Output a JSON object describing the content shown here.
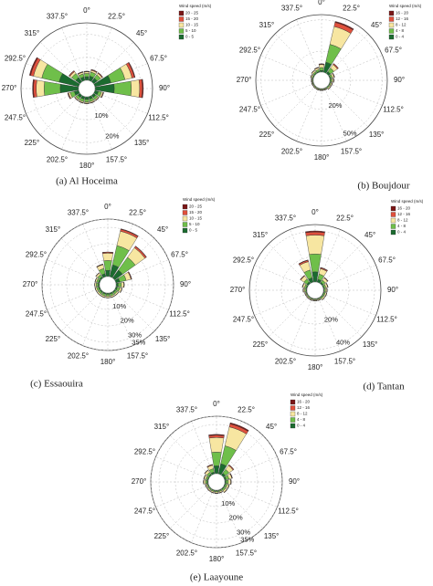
{
  "chart_data": [
    {
      "type": "wind-rose",
      "caption": "(a) Al Hoceima",
      "legend_title": "Wind speed (m/s)",
      "categories": [
        "0°",
        "22.5°",
        "45°",
        "67.5°",
        "90°",
        "112.5°",
        "135°",
        "157.5°",
        "180°",
        "202.5°",
        "225°",
        "247.5°",
        "270°",
        "292.5°",
        "315°",
        "337.5°"
      ],
      "rlim": [
        0,
        25
      ],
      "rticks": [
        {
          "value": 10,
          "label": "10%"
        },
        {
          "value": 20,
          "label": "20%"
        }
      ],
      "series": [
        {
          "name": "0 - 5",
          "color": "#1b6b2f",
          "values": [
            1.6,
            2,
            2,
            7.2,
            8.4,
            1.6,
            1.2,
            1.2,
            1.2,
            1.2,
            1.2,
            2,
            8,
            8.8,
            2.4,
            1.6
          ]
        },
        {
          "name": "5 - 10",
          "color": "#6fbf4a",
          "values": [
            1.4,
            1.8,
            1.8,
            6.3,
            7.4,
            1.4,
            1.1,
            1.1,
            1.1,
            1.1,
            1.1,
            1.8,
            7,
            7.7,
            2.1,
            1.4
          ]
        },
        {
          "name": "10 - 15",
          "color": "#f7e6a1",
          "values": [
            0.7,
            0.8,
            0.8,
            3.1,
            3.6,
            0.7,
            0.5,
            0.5,
            0.5,
            0.5,
            0.5,
            0.8,
            3.4,
            3.7,
            1,
            0.7
          ]
        },
        {
          "name": "15 - 20",
          "color": "#e0503c",
          "values": [
            0.2,
            0.3,
            0.3,
            1.1,
            1.2,
            0.2,
            0.2,
            0.2,
            0.2,
            0.2,
            0.2,
            0.3,
            1.2,
            1.3,
            0.4,
            0.2
          ]
        },
        {
          "name": "20 - 25",
          "color": "#7a1616",
          "values": [
            0.1,
            0.1,
            0.1,
            0.3,
            0.4,
            0.1,
            0,
            0,
            0,
            0,
            0,
            0.1,
            0.4,
            0.5,
            0.1,
            0.1
          ]
        }
      ]
    },
    {
      "type": "wind-rose",
      "caption": "(b) Boujdour",
      "legend_title": "Wind speed (m/s)",
      "categories": [
        "0°",
        "22.5°",
        "45°",
        "67.5°",
        "90°",
        "112.5°",
        "135°",
        "157.5°",
        "180°",
        "202.5°",
        "225°",
        "247.5°",
        "270°",
        "292.5°",
        "315°",
        "337.5°"
      ],
      "rlim": [
        0,
        55
      ],
      "rticks": [
        {
          "value": 20,
          "label": "20%"
        },
        {
          "value": 50,
          "label": "50%"
        }
      ],
      "series": [
        {
          "name": "0 - 4",
          "color": "#1b6b2f",
          "values": [
            1.6,
            10,
            2.4,
            1,
            0.8,
            0.6,
            0.6,
            0.4,
            0.4,
            0.4,
            0.4,
            0.4,
            0.4,
            0.6,
            0.8,
            1
          ]
        },
        {
          "name": "4 - 8",
          "color": "#6fbf4a",
          "values": [
            2.8,
            17.5,
            4.2,
            1.8,
            1.4,
            1,
            1,
            0.7,
            0.7,
            0.7,
            0.7,
            0.7,
            0.7,
            1,
            1.4,
            1.8
          ]
        },
        {
          "name": "8 - 12",
          "color": "#f7e6a1",
          "values": [
            2.8,
            17.5,
            4.2,
            1.7,
            1.4,
            1.1,
            1.1,
            0.7,
            0.7,
            0.7,
            0.7,
            0.7,
            0.7,
            1.1,
            1.4,
            1.7
          ]
        },
        {
          "name": "12 - 16",
          "color": "#e0503c",
          "values": [
            0.6,
            4,
            1,
            0.4,
            0.3,
            0.2,
            0.2,
            0.2,
            0.2,
            0.2,
            0.2,
            0.2,
            0.2,
            0.2,
            0.3,
            0.4
          ]
        },
        {
          "name": "16 - 20",
          "color": "#7a1616",
          "values": [
            0.2,
            1,
            0.2,
            0.1,
            0.1,
            0.1,
            0.1,
            0,
            0,
            0,
            0,
            0,
            0,
            0.1,
            0.1,
            0.1
          ]
        }
      ]
    },
    {
      "type": "wind-rose",
      "caption": "(c) Essaouira",
      "legend_title": "Wind speed (m/s)",
      "categories": [
        "0°",
        "22.5°",
        "45°",
        "67.5°",
        "90°",
        "112.5°",
        "135°",
        "157.5°",
        "180°",
        "202.5°",
        "225°",
        "247.5°",
        "270°",
        "292.5°",
        "315°",
        "337.5°"
      ],
      "rlim": [
        0,
        35
      ],
      "rticks": [
        {
          "value": 10,
          "label": "10%"
        },
        {
          "value": 20,
          "label": "20%"
        },
        {
          "value": 30,
          "label": "30%"
        },
        {
          "value": 35,
          "label": "35%"
        }
      ],
      "series": [
        {
          "name": "0 - 5",
          "color": "#1b6b2f",
          "values": [
            3.8,
            7.5,
            6,
            2.5,
            1.3,
            1,
            0.8,
            0.8,
            0.8,
            0.8,
            0.8,
            0.8,
            0.8,
            0.8,
            1,
            2
          ]
        },
        {
          "name": "5 - 10",
          "color": "#6fbf4a",
          "values": [
            6,
            12,
            9.6,
            4,
            2,
            1.6,
            1.2,
            1.2,
            1.2,
            1.2,
            1.2,
            1.2,
            1.2,
            1.2,
            1.6,
            3.2
          ]
        },
        {
          "name": "10 - 15",
          "color": "#f7e6a1",
          "values": [
            4.5,
            9,
            7.2,
            3,
            1.5,
            1.2,
            0.9,
            0.9,
            0.9,
            0.9,
            0.9,
            0.9,
            0.9,
            0.9,
            1.2,
            2.4
          ]
        },
        {
          "name": "15 - 20",
          "color": "#e0503c",
          "values": [
            0.6,
            1.2,
            1,
            0.4,
            0.2,
            0.2,
            0.1,
            0.1,
            0.1,
            0.1,
            0.1,
            0.1,
            0.1,
            0.1,
            0.2,
            0.3
          ]
        },
        {
          "name": "20 - 25",
          "color": "#7a1616",
          "values": [
            0.1,
            0.3,
            0.2,
            0.1,
            0,
            0,
            0,
            0,
            0,
            0,
            0,
            0,
            0,
            0,
            0,
            0.1
          ]
        }
      ]
    },
    {
      "type": "wind-rose",
      "caption": "(d) Tantan",
      "legend_title": "Wind speed (m/s)",
      "categories": [
        "0°",
        "22.5°",
        "45°",
        "67.5°",
        "90°",
        "112.5°",
        "135°",
        "157.5°",
        "180°",
        "202.5°",
        "225°",
        "247.5°",
        "270°",
        "292.5°",
        "315°",
        "337.5°"
      ],
      "rlim": [
        0,
        45
      ],
      "rticks": [
        {
          "value": 20,
          "label": "20%"
        },
        {
          "value": 40,
          "label": "40%"
        }
      ],
      "series": [
        {
          "name": "0 - 4",
          "color": "#1b6b2f",
          "values": [
            8,
            2.4,
            1.2,
            0.8,
            0.6,
            0.6,
            0.6,
            0.4,
            0.4,
            0.4,
            0.4,
            0.4,
            0.6,
            0.8,
            1.6,
            3.6
          ]
        },
        {
          "name": "4 - 8",
          "color": "#6fbf4a",
          "values": [
            14,
            4.2,
            2.1,
            1.4,
            1.1,
            1.1,
            1.1,
            0.7,
            0.7,
            0.7,
            0.7,
            0.7,
            1.1,
            1.4,
            2.8,
            6.3
          ]
        },
        {
          "name": "8 - 12",
          "color": "#f7e6a1",
          "values": [
            14.8,
            4.4,
            2.2,
            1.5,
            1.1,
            1.1,
            1.1,
            0.7,
            0.7,
            0.7,
            0.7,
            0.7,
            1.1,
            1.5,
            3,
            6.7
          ]
        },
        {
          "name": "12 - 16",
          "color": "#e0503c",
          "values": [
            2.4,
            0.7,
            0.4,
            0.2,
            0.2,
            0.2,
            0.2,
            0.2,
            0.2,
            0.2,
            0.2,
            0.2,
            0.2,
            0.2,
            0.5,
            1.1
          ]
        },
        {
          "name": "16 - 20",
          "color": "#7a1616",
          "values": [
            0.8,
            0.3,
            0.1,
            0.1,
            0,
            0,
            0,
            0,
            0,
            0,
            0,
            0,
            0,
            0.1,
            0.1,
            0.3
          ]
        }
      ]
    },
    {
      "type": "wind-rose",
      "caption": "(e) Laayoune",
      "legend_title": "Wind speed (m/s)",
      "categories": [
        "0°",
        "22.5°",
        "45°",
        "67.5°",
        "90°",
        "112.5°",
        "135°",
        "157.5°",
        "180°",
        "202.5°",
        "225°",
        "247.5°",
        "270°",
        "292.5°",
        "315°",
        "337.5°"
      ],
      "rlim": [
        0,
        35
      ],
      "rticks": [
        {
          "value": 10,
          "label": "10%"
        },
        {
          "value": 20,
          "label": "20%"
        },
        {
          "value": 30,
          "label": "30%"
        },
        {
          "value": 35,
          "label": "35%"
        }
      ],
      "series": [
        {
          "name": "0 - 4",
          "color": "#1b6b2f",
          "values": [
            4.8,
            6.4,
            1.6,
            1,
            0.8,
            0.6,
            0.6,
            0.4,
            0.4,
            0.4,
            0.4,
            0.4,
            0.6,
            0.6,
            0.8,
            1.2
          ]
        },
        {
          "name": "4 - 8",
          "color": "#6fbf4a",
          "values": [
            8.4,
            11.2,
            2.8,
            1.8,
            1.4,
            1.1,
            1.1,
            0.7,
            0.7,
            0.7,
            0.7,
            0.7,
            1.1,
            1.1,
            1.4,
            2.1
          ]
        },
        {
          "name": "8 - 12",
          "color": "#f7e6a1",
          "values": [
            8.9,
            11.8,
            3,
            1.8,
            1.5,
            1.1,
            1.1,
            0.7,
            0.7,
            0.7,
            0.7,
            0.7,
            1.1,
            1.1,
            1.5,
            2.2
          ]
        },
        {
          "name": "12 - 16",
          "color": "#e0503c",
          "values": [
            1.4,
            1.9,
            0.5,
            0.2,
            0.2,
            0.2,
            0.2,
            0.2,
            0.2,
            0.2,
            0.2,
            0.2,
            0.2,
            0.2,
            0.2,
            0.4
          ]
        },
        {
          "name": "16 - 20",
          "color": "#7a1616",
          "values": [
            0.5,
            0.7,
            0.1,
            0.2,
            0.1,
            0,
            0,
            0,
            0,
            0,
            0,
            0,
            0,
            0,
            0.1,
            0.1
          ]
        }
      ]
    }
  ]
}
